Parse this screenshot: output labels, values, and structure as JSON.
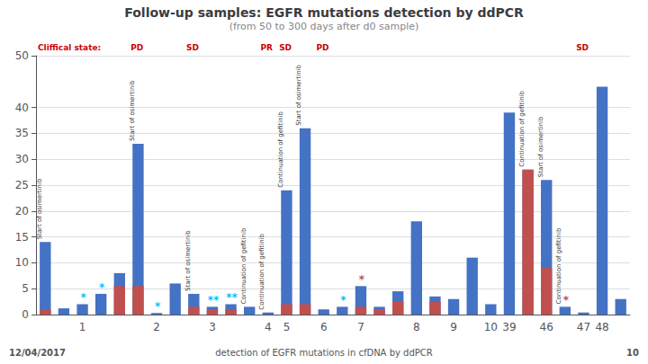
{
  "chart_data": {
    "type": "bar",
    "title": "Follow-up samples: EGFR mutations detection by ddPCR",
    "subtitle": "(from 50 to 300 days after d0 sample)",
    "categories": [
      null,
      null,
      "1",
      null,
      null,
      null,
      "2",
      null,
      null,
      "3",
      null,
      null,
      "4",
      "5",
      null,
      "6",
      null,
      "7",
      null,
      null,
      "8",
      null,
      "9",
      null,
      "10",
      "39",
      null,
      "46",
      null,
      "47",
      "48",
      null
    ],
    "series": [
      {
        "color": "#4472c4",
        "values": [
          14,
          1.2,
          2.0,
          4.0,
          8.0,
          33,
          0.3,
          6.0,
          4.0,
          1.5,
          2.0,
          1.5,
          0.4,
          24,
          36,
          1.0,
          1.5,
          5.5,
          1.5,
          4.5,
          18,
          3.5,
          3.0,
          11,
          2.0,
          39,
          28,
          26,
          1.5,
          0.4,
          44,
          3.0
        ]
      },
      {
        "color": "#c0504d",
        "values": [
          1.0,
          0,
          0,
          0,
          5.5,
          5.5,
          0,
          0,
          1.5,
          1.0,
          1.0,
          0,
          0,
          2.0,
          2.0,
          0,
          0,
          1.5,
          1.0,
          2.5,
          0,
          2.5,
          0,
          0,
          0,
          0,
          28,
          9,
          0,
          0,
          0,
          0
        ]
      }
    ],
    "ylim": [
      0,
      50
    ],
    "yticks": [
      0,
      5,
      10,
      15,
      20,
      25,
      30,
      35,
      40,
      50
    ],
    "grid": true,
    "annotations": {
      "treatment": [
        {
          "text": "Start of osimertinib",
          "x": 0
        },
        {
          "text": "Start of osimertinib",
          "x": 5
        },
        {
          "text": "Start of osimertinib",
          "x": 8
        },
        {
          "text": "Continuation of gefitinib",
          "x": 11
        },
        {
          "text": "Continuation of gefitinib",
          "x": 12
        },
        {
          "text": "Continuation of gefitinib",
          "x": 13
        },
        {
          "text": "Start of osimertinib",
          "x": 14
        },
        {
          "text": "Continuation of gefitinib",
          "x": 26
        },
        {
          "text": "Start of osimertinib",
          "x": 27
        },
        {
          "text": "Continuation of gefitinib",
          "x": 28
        }
      ],
      "stars": [
        {
          "text": "*",
          "x": 2,
          "color": "#00bfff"
        },
        {
          "text": "*",
          "x": 3,
          "color": "#00bfff"
        },
        {
          "text": "*",
          "x": 6,
          "color": "#00bfff"
        },
        {
          "text": "**",
          "x": 9,
          "color": "#00bfff"
        },
        {
          "text": "**",
          "x": 10,
          "color": "#00bfff"
        },
        {
          "text": "*",
          "x": 16,
          "color": "#00bfff"
        },
        {
          "text": "*",
          "x": 17,
          "color": "#c0504d"
        },
        {
          "text": "*",
          "x": 28,
          "color": "#c0504d"
        }
      ],
      "clinical_state": [
        {
          "text": "Cliffical state:",
          "x": 0,
          "color": "#cc0000"
        },
        {
          "text": "PD",
          "x": 5,
          "color": "#cc0000"
        },
        {
          "text": "SD",
          "x": 8,
          "color": "#cc0000"
        },
        {
          "text": "PR",
          "x": 12,
          "color": "#cc0000"
        },
        {
          "text": "SD",
          "x": 13,
          "color": "#cc0000"
        },
        {
          "text": "PD",
          "x": 15,
          "color": "#cc0000"
        },
        {
          "text": "SD",
          "x": 29,
          "color": "#cc0000"
        }
      ],
      "footer": {
        "left": "12/04/2017",
        "center": "detection of EGFR mutations in cfDNA by ddPCR",
        "right": "10"
      }
    }
  }
}
